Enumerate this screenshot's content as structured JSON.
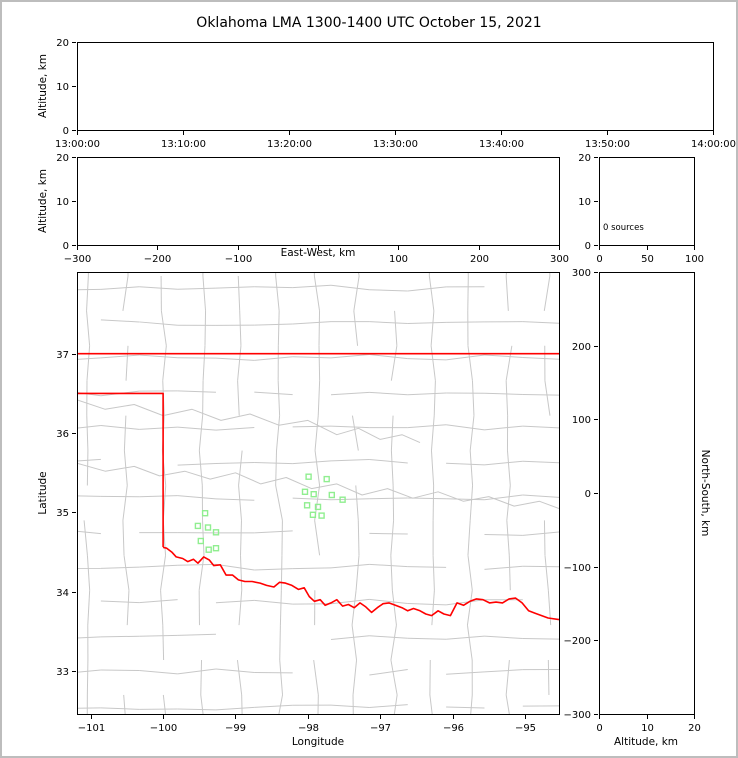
{
  "chart_data": {
    "type": "scatter",
    "title": "Oklahoma LMA 1300-1400 UTC October 15, 2021",
    "colors": {
      "county": "#c8c8c8",
      "gray_river": "#c8c8c8",
      "state_border": "#ff0000",
      "station": "#90ee90",
      "axis": "#000000"
    },
    "panels": {
      "time_altitude": {
        "type": "scatter",
        "ylabel": "Altitude, km",
        "ylim": [
          0,
          20
        ],
        "yticks": [
          0,
          10,
          20
        ],
        "xtick_labels": [
          "13:00:00",
          "13:10:00",
          "13:20:00",
          "13:30:00",
          "13:40:00",
          "13:50:00",
          "14:00:00"
        ],
        "points": []
      },
      "ew_altitude": {
        "type": "scatter",
        "xlabel": "East-West, km",
        "ylabel": "Altitude, km",
        "xlim": [
          -300,
          300
        ],
        "xticks": [
          -300,
          -200,
          -100,
          0,
          100,
          200,
          300
        ],
        "xtick_show_label": [
          true,
          true,
          true,
          false,
          true,
          true,
          true
        ],
        "ylim": [
          0,
          20
        ],
        "yticks": [
          0,
          10,
          20
        ],
        "points": []
      },
      "altitude_histogram": {
        "type": "line",
        "annotation": "0 sources",
        "xlim": [
          0,
          100
        ],
        "xticks": [
          0,
          50,
          100
        ],
        "ylim": [
          0,
          20
        ],
        "yticks": [
          0,
          10,
          20
        ],
        "values": []
      },
      "plan_map": {
        "type": "scatter",
        "xlabel": "Longitude",
        "ylabel": "Latitude",
        "xlim": [
          -101.19,
          -94.53
        ],
        "ylim": [
          32.46,
          38.03
        ],
        "xticks": [
          -101,
          -100,
          -99,
          -98,
          -97,
          -96,
          -95
        ],
        "yticks": [
          33,
          34,
          35,
          36,
          37
        ],
        "stations": [
          [
            -97.99,
            35.45
          ],
          [
            -97.74,
            35.42
          ],
          [
            -98.04,
            35.26
          ],
          [
            -97.92,
            35.23
          ],
          [
            -97.67,
            35.22
          ],
          [
            -97.52,
            35.16
          ],
          [
            -98.01,
            35.09
          ],
          [
            -97.86,
            35.07
          ],
          [
            -97.93,
            34.97
          ],
          [
            -97.81,
            34.96
          ],
          [
            -99.42,
            34.99
          ],
          [
            -99.52,
            34.83
          ],
          [
            -99.38,
            34.81
          ],
          [
            -99.27,
            34.75
          ],
          [
            -99.48,
            34.64
          ],
          [
            -99.37,
            34.53
          ],
          [
            -99.27,
            34.55
          ]
        ],
        "state_border": [
          [
            [
              -101.19,
              37.0
            ],
            [
              -94.53,
              37.0
            ]
          ],
          [
            [
              -101.19,
              36.5
            ],
            [
              -100.0,
              36.5
            ],
            [
              -100.0,
              34.563
            ]
          ]
        ],
        "red_river": [
          [
            -100.0,
            34.56
          ],
          [
            -99.95,
            34.55
          ],
          [
            -99.88,
            34.5
          ],
          [
            -99.82,
            34.44
          ],
          [
            -99.73,
            34.42
          ],
          [
            -99.66,
            34.38
          ],
          [
            -99.58,
            34.41
          ],
          [
            -99.52,
            34.36
          ],
          [
            -99.44,
            34.44
          ],
          [
            -99.36,
            34.4
          ],
          [
            -99.3,
            34.33
          ],
          [
            -99.21,
            34.34
          ],
          [
            -99.13,
            34.21
          ],
          [
            -99.04,
            34.21
          ],
          [
            -98.96,
            34.15
          ],
          [
            -98.87,
            34.13
          ],
          [
            -98.77,
            34.13
          ],
          [
            -98.66,
            34.11
          ],
          [
            -98.57,
            34.08
          ],
          [
            -98.47,
            34.06
          ],
          [
            -98.39,
            34.12
          ],
          [
            -98.31,
            34.11
          ],
          [
            -98.22,
            34.08
          ],
          [
            -98.13,
            34.03
          ],
          [
            -98.05,
            34.05
          ],
          [
            -97.98,
            33.94
          ],
          [
            -97.91,
            33.88
          ],
          [
            -97.83,
            33.9
          ],
          [
            -97.76,
            33.83
          ],
          [
            -97.68,
            33.86
          ],
          [
            -97.6,
            33.9
          ],
          [
            -97.52,
            33.82
          ],
          [
            -97.44,
            33.84
          ],
          [
            -97.36,
            33.8
          ],
          [
            -97.28,
            33.86
          ],
          [
            -97.2,
            33.81
          ],
          [
            -97.12,
            33.74
          ],
          [
            -97.04,
            33.8
          ],
          [
            -96.96,
            33.85
          ],
          [
            -96.88,
            33.86
          ],
          [
            -96.79,
            33.83
          ],
          [
            -96.7,
            33.8
          ],
          [
            -96.62,
            33.76
          ],
          [
            -96.54,
            33.79
          ],
          [
            -96.45,
            33.76
          ],
          [
            -96.37,
            33.72
          ],
          [
            -96.29,
            33.7
          ],
          [
            -96.2,
            33.76
          ],
          [
            -96.12,
            33.72
          ],
          [
            -96.03,
            33.7
          ],
          [
            -95.94,
            33.86
          ],
          [
            -95.85,
            33.83
          ],
          [
            -95.76,
            33.88
          ],
          [
            -95.67,
            33.91
          ],
          [
            -95.58,
            33.9
          ],
          [
            -95.49,
            33.86
          ],
          [
            -95.4,
            33.87
          ],
          [
            -95.31,
            33.86
          ],
          [
            -95.22,
            33.91
          ],
          [
            -95.13,
            33.92
          ],
          [
            -95.04,
            33.86
          ],
          [
            -94.95,
            33.76
          ],
          [
            -94.86,
            33.73
          ],
          [
            -94.77,
            33.7
          ],
          [
            -94.68,
            33.67
          ],
          [
            -94.53,
            33.65
          ]
        ],
        "gray_rivers": [
          [
            [
              -101.19,
              35.62
            ],
            [
              -100.8,
              35.52
            ],
            [
              -100.4,
              35.58
            ],
            [
              -100.05,
              35.46
            ],
            [
              -99.7,
              35.52
            ],
            [
              -99.35,
              35.42
            ],
            [
              -99.0,
              35.5
            ],
            [
              -98.65,
              35.36
            ],
            [
              -98.3,
              35.44
            ],
            [
              -97.95,
              35.3
            ],
            [
              -97.6,
              35.36
            ],
            [
              -97.25,
              35.22
            ],
            [
              -96.9,
              35.3
            ],
            [
              -96.55,
              35.18
            ],
            [
              -96.2,
              35.26
            ],
            [
              -95.85,
              35.14
            ],
            [
              -95.5,
              35.2
            ],
            [
              -95.15,
              35.08
            ],
            [
              -94.8,
              35.14
            ],
            [
              -94.53,
              35.05
            ]
          ],
          [
            [
              -101.19,
              36.42
            ],
            [
              -100.8,
              36.3
            ],
            [
              -100.4,
              36.36
            ],
            [
              -100.0,
              36.22
            ],
            [
              -99.6,
              36.3
            ],
            [
              -99.2,
              36.16
            ],
            [
              -98.8,
              36.24
            ],
            [
              -98.4,
              36.1
            ],
            [
              -98.0,
              36.16
            ],
            [
              -97.6,
              35.98
            ],
            [
              -97.3,
              36.06
            ],
            [
              -97.0,
              35.92
            ],
            [
              -96.7,
              35.98
            ],
            [
              -96.45,
              35.88
            ]
          ]
        ],
        "counties": {
          "seed": 11,
          "lon_start": -101.05,
          "lon_step": 0.53,
          "lat_start": 32.55,
          "lat_step": 0.44,
          "jitter": 0.05,
          "skip": 0.13
        }
      },
      "ns_altitude": {
        "type": "scatter",
        "xlabel": "Altitude, km",
        "ylabel_right": "North-South, km",
        "xlim": [
          0,
          20
        ],
        "xticks": [
          0,
          10,
          20
        ],
        "ylim": [
          -300,
          300
        ],
        "yticks": [
          -300,
          -200,
          -100,
          0,
          100,
          200,
          300
        ],
        "points": []
      }
    }
  }
}
